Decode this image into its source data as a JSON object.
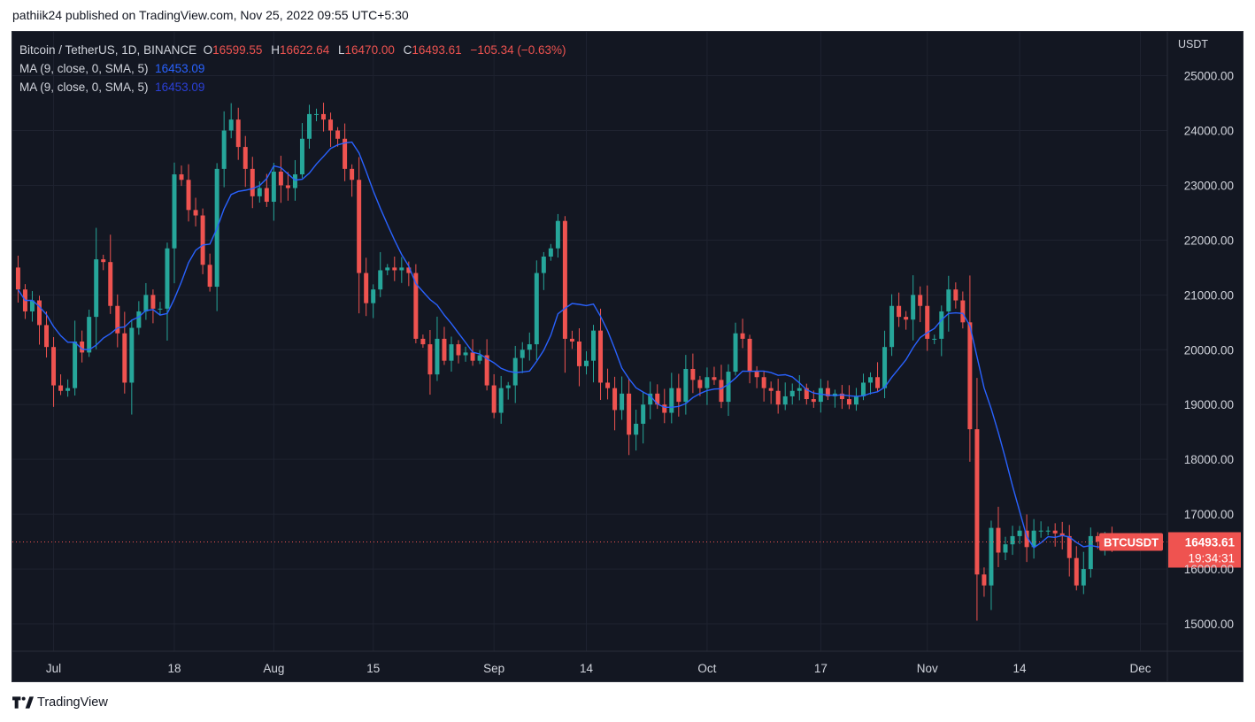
{
  "publisher_line": "pathiik24 published on TradingView.com, Nov 25, 2022 09:55 UTC+5:30",
  "footer_brand": "TradingView",
  "legend": {
    "symbol": "Bitcoin / TetherUS, 1D, BINANCE",
    "open_label": "O",
    "open": "16599.55",
    "high_label": "H",
    "high": "16622.64",
    "low_label": "L",
    "low": "16470.00",
    "close_label": "C",
    "close": "16493.61",
    "change": "−105.34 (−0.63%)",
    "ma1_label": "MA (9, close, 0, SMA, 5)",
    "ma1_value": "16453.09",
    "ma2_label": "MA (9, close, 0, SMA, 5)",
    "ma2_value": "16453.09"
  },
  "colors": {
    "background": "#131722",
    "up": "#26a69a",
    "down": "#ef5350",
    "ma": "#2962ff",
    "grid": "#1f2330"
  },
  "chart_data": {
    "type": "candlestick",
    "title": "Bitcoin / TetherUS, 1D, BINANCE",
    "y_unit": "USDT",
    "ylim": [
      14500,
      25800
    ],
    "y_ticks": [
      "25000.00",
      "24000.00",
      "23000.00",
      "22000.00",
      "21000.00",
      "20000.00",
      "19000.00",
      "18000.00",
      "17000.00",
      "16000.00",
      "15000.00"
    ],
    "y_tick_values": [
      25000,
      24000,
      23000,
      22000,
      21000,
      20000,
      19000,
      18000,
      17000,
      16000,
      15000
    ],
    "x_ticks": [
      {
        "label": "Jul",
        "index": 5
      },
      {
        "label": "18",
        "index": 22
      },
      {
        "label": "Aug",
        "index": 36
      },
      {
        "label": "15",
        "index": 50
      },
      {
        "label": "Sep",
        "index": 67
      },
      {
        "label": "14",
        "index": 80
      },
      {
        "label": "Oct",
        "index": 97
      },
      {
        "label": "17",
        "index": 113
      },
      {
        "label": "Nov",
        "index": 128
      },
      {
        "label": "14",
        "index": 141
      },
      {
        "label": "Dec",
        "index": 158
      }
    ],
    "x_range": [
      -0.8,
      161.8
    ],
    "price_line": 16493.61,
    "price_label": "BTCUSDT",
    "price_value": "16493.61",
    "countdown": "19:34:31",
    "ma_period": 9,
    "close": [
      21100,
      20700,
      20900,
      20450,
      20050,
      19350,
      19250,
      19300,
      20150,
      19950,
      20600,
      21650,
      21600,
      20800,
      20300,
      19400,
      20400,
      20700,
      21000,
      20750,
      20750,
      21850,
      23200,
      23100,
      22550,
      22450,
      21550,
      21150,
      23300,
      24000,
      24200,
      23700,
      23300,
      22800,
      22950,
      22700,
      23250,
      23000,
      22950,
      23200,
      23850,
      24300,
      24300,
      24200,
      24000,
      23850,
      23300,
      23100,
      21400,
      20850,
      21100,
      21450,
      21500,
      21450,
      21500,
      21400,
      20200,
      20100,
      19550,
      20200,
      19800,
      20100,
      19900,
      19950,
      19800,
      19900,
      19350,
      18850,
      19300,
      19350,
      19850,
      20000,
      20100,
      21400,
      21700,
      21850,
      22350,
      20200,
      20150,
      19700,
      19800,
      20350,
      19400,
      19300,
      18900,
      19200,
      18450,
      18650,
      19000,
      19200,
      19000,
      18850,
      19300,
      19050,
      19650,
      19450,
      19300,
      19500,
      19450,
      19050,
      19600,
      20300,
      20200,
      19600,
      19500,
      19300,
      19250,
      19000,
      19150,
      19250,
      19300,
      19100,
      19050,
      19300,
      19150,
      19200,
      19100,
      19000,
      19150,
      19400,
      19500,
      19300,
      20050,
      20800,
      20600,
      20550,
      21000,
      20800,
      20200,
      20200,
      20700,
      21100,
      20900,
      20500,
      18550,
      15900,
      15700,
      16750,
      16300,
      16450,
      16600,
      16700,
      16400,
      16700,
      16700,
      16700,
      16650,
      16600,
      16200,
      15700,
      16000,
      16600,
      16500,
      16550,
      16493.61
    ],
    "source_note": ""
  }
}
